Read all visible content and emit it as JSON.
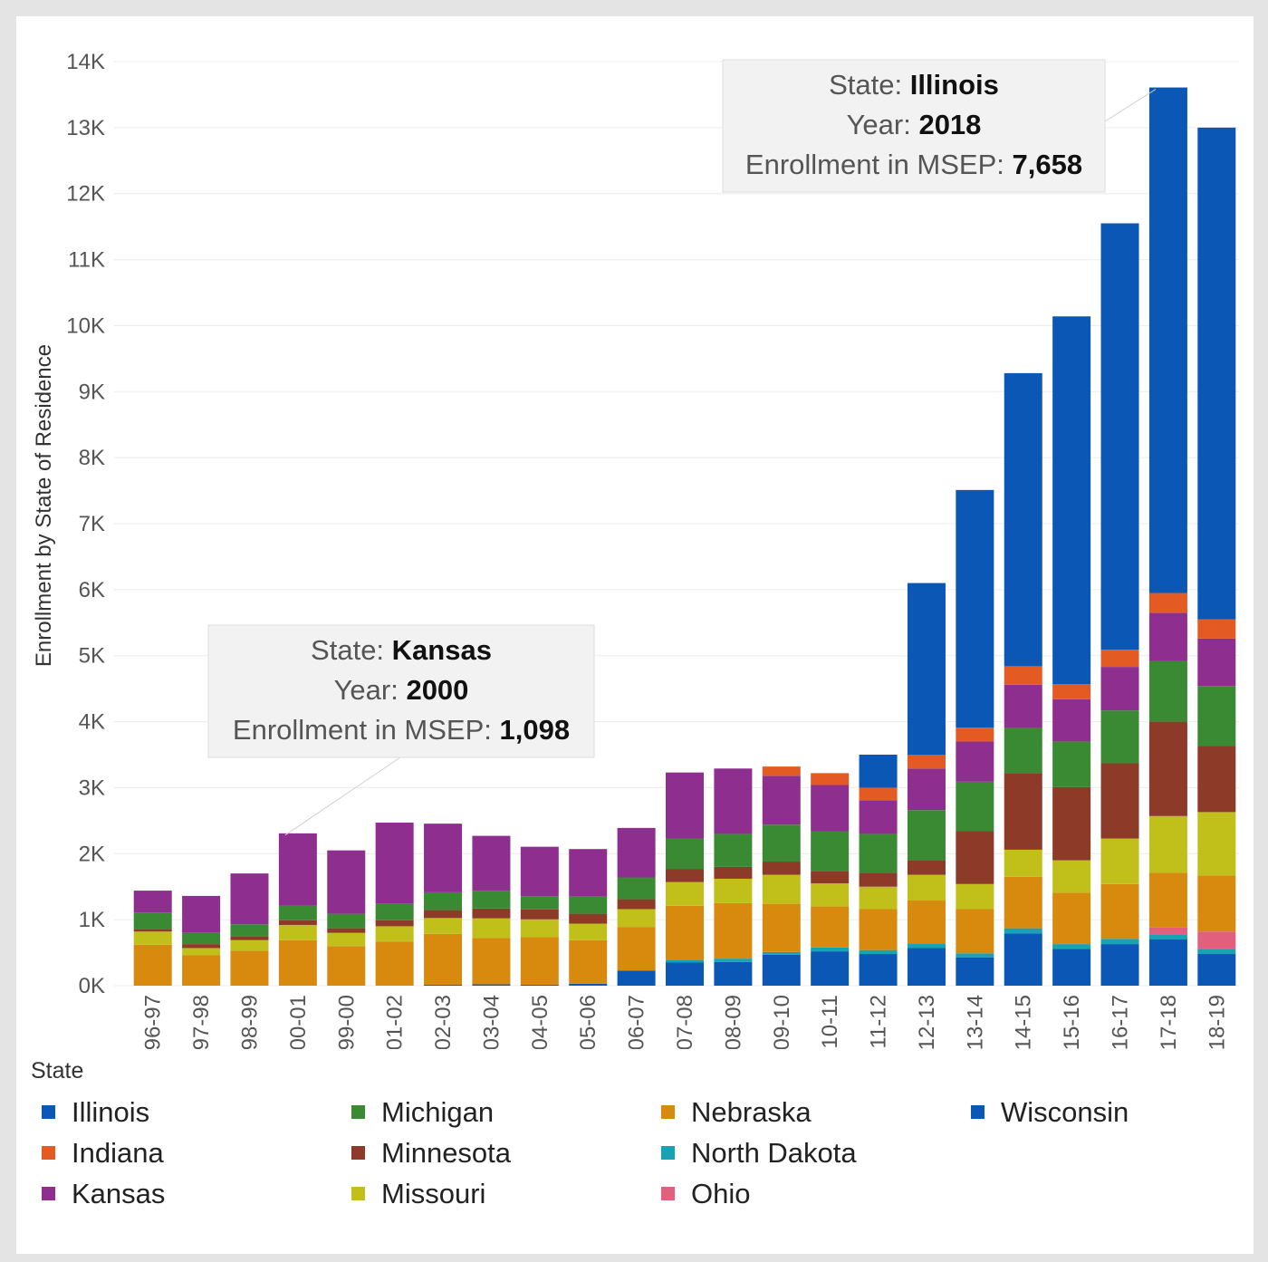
{
  "chart_data": {
    "type": "bar",
    "stacked": true,
    "ylabel": "Enrollment by State of Residence",
    "ylim": [
      0,
      14000
    ],
    "yticks": [
      0,
      1000,
      2000,
      3000,
      4000,
      5000,
      6000,
      7000,
      8000,
      9000,
      10000,
      11000,
      12000,
      13000,
      14000
    ],
    "ytick_labels": [
      "0K",
      "1K",
      "2K",
      "3K",
      "4K",
      "5K",
      "6K",
      "7K",
      "8K",
      "9K",
      "10K",
      "11K",
      "12K",
      "13K",
      "14K"
    ],
    "grid": true,
    "categories": [
      "96-97",
      "97-98",
      "98-99",
      "00-01",
      "99-00",
      "01-02",
      "02-03",
      "03-04",
      "04-05",
      "05-06",
      "06-07",
      "07-08",
      "08-09",
      "09-10",
      "10-11",
      "11-12",
      "12-13",
      "13-14",
      "14-15",
      "15-16",
      "16-17",
      "17-18",
      "18-19"
    ],
    "legend_title": "State",
    "legend_position": "bottom",
    "series": [
      {
        "name": "Wisconsin",
        "color": "#0a57b5",
        "values": [
          0,
          0,
          0,
          0,
          0,
          0,
          15,
          20,
          15,
          30,
          230,
          350,
          360,
          470,
          520,
          480,
          570,
          430,
          790,
          560,
          630,
          700,
          480
        ]
      },
      {
        "name": "North Dakota",
        "color": "#17a3b3",
        "values": [
          0,
          0,
          0,
          0,
          0,
          0,
          0,
          0,
          0,
          0,
          0,
          40,
          50,
          40,
          60,
          60,
          70,
          60,
          80,
          70,
          80,
          80,
          80
        ]
      },
      {
        "name": "Ohio",
        "color": "#e0607e",
        "values": [
          0,
          0,
          0,
          0,
          0,
          0,
          0,
          0,
          0,
          0,
          0,
          0,
          0,
          0,
          0,
          0,
          0,
          0,
          0,
          0,
          0,
          100,
          260
        ]
      },
      {
        "name": "Nebraska",
        "color": "#d88a0f",
        "values": [
          620,
          460,
          530,
          690,
          600,
          670,
          770,
          700,
          720,
          660,
          660,
          820,
          840,
          730,
          620,
          620,
          650,
          670,
          780,
          780,
          830,
          830,
          850
        ]
      },
      {
        "name": "Missouri",
        "color": "#c1c01b",
        "values": [
          200,
          110,
          160,
          230,
          200,
          230,
          240,
          300,
          270,
          250,
          270,
          360,
          370,
          440,
          350,
          340,
          390,
          380,
          410,
          490,
          690,
          860,
          960
        ]
      },
      {
        "name": "Minnesota",
        "color": "#8e3a28",
        "values": [
          40,
          60,
          60,
          70,
          70,
          90,
          120,
          150,
          150,
          150,
          150,
          200,
          180,
          200,
          190,
          210,
          220,
          800,
          1160,
          1110,
          1140,
          1430,
          1000
        ]
      },
      {
        "name": "Michigan",
        "color": "#3a8a34",
        "values": [
          250,
          170,
          180,
          220,
          220,
          250,
          270,
          270,
          200,
          260,
          330,
          460,
          500,
          560,
          600,
          590,
          760,
          750,
          680,
          690,
          800,
          920,
          910
        ]
      },
      {
        "name": "Kansas",
        "color": "#8e2e8f",
        "values": [
          330,
          560,
          770,
          1098,
          960,
          1230,
          1040,
          830,
          750,
          720,
          750,
          1000,
          990,
          740,
          700,
          510,
          630,
          610,
          660,
          640,
          660,
          730,
          720
        ]
      },
      {
        "name": "Indiana",
        "color": "#e35a22",
        "values": [
          0,
          0,
          0,
          0,
          0,
          0,
          0,
          0,
          0,
          0,
          0,
          0,
          0,
          140,
          180,
          190,
          210,
          210,
          280,
          230,
          260,
          300,
          290
        ]
      },
      {
        "name": "Illinois",
        "color": "#0a57b5",
        "values": [
          0,
          0,
          0,
          0,
          0,
          0,
          0,
          0,
          0,
          0,
          0,
          0,
          0,
          0,
          0,
          500,
          2600,
          3600,
          4440,
          5570,
          6460,
          7658,
          7450
        ]
      }
    ],
    "legend": [
      {
        "name": "Illinois",
        "color": "#0a57b5"
      },
      {
        "name": "Indiana",
        "color": "#e35a22"
      },
      {
        "name": "Kansas",
        "color": "#8e2e8f"
      },
      {
        "name": "Michigan",
        "color": "#3a8a34"
      },
      {
        "name": "Minnesota",
        "color": "#8e3a28"
      },
      {
        "name": "Missouri",
        "color": "#c1c01b"
      },
      {
        "name": "Nebraska",
        "color": "#d88a0f"
      },
      {
        "name": "North Dakota",
        "color": "#17a3b3"
      },
      {
        "name": "Ohio",
        "color": "#e0607e"
      },
      {
        "name": "Wisconsin",
        "color": "#0a57b5"
      }
    ],
    "tooltips": [
      {
        "state_key": "State:",
        "state": "Kansas",
        "year_key": "Year:",
        "year": "2000",
        "value_key": "Enrollment in MSEP:",
        "value": "1,098",
        "target_category": "00-01",
        "target_series": "Kansas"
      },
      {
        "state_key": "State:",
        "state": "Illinois",
        "year_key": "Year:",
        "year": "2018",
        "value_key": "Enrollment in MSEP:",
        "value": "7,658",
        "target_category": "17-18",
        "target_series": "Illinois"
      }
    ]
  }
}
